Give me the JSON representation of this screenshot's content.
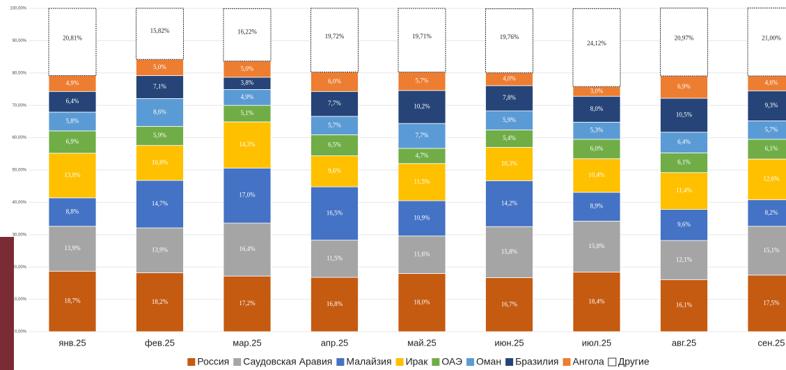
{
  "chart_data": {
    "type": "stacked_bar",
    "categories": [
      "янв.25",
      "фев.25",
      "мар.25",
      "апр.25",
      "май.25",
      "июн.25",
      "июл.25",
      "авг.25",
      "сен.25"
    ],
    "series": [
      {
        "name": "Россия",
        "color": "#c55a11",
        "values": [
          18.7,
          18.2,
          17.2,
          16.8,
          18.0,
          16.7,
          18.4,
          16.1,
          17.5
        ],
        "value_labels": [
          "18,7%",
          "18,2%",
          "17,2%",
          "16,8%",
          "18,0%",
          "16,7%",
          "18,4%",
          "16,1%",
          "17,5%"
        ]
      },
      {
        "name": "Саудовская Аравия",
        "color": "#a5a5a5",
        "values": [
          13.9,
          13.9,
          16.4,
          11.5,
          11.6,
          15.8,
          15.8,
          12.1,
          15.1
        ],
        "value_labels": [
          "13,9%",
          "13,9%",
          "16,4%",
          "11,5%",
          "11,6%",
          "15,8%",
          "15,8%",
          "12,1%",
          "15,1%"
        ]
      },
      {
        "name": "Малайзия",
        "color": "#4472c4",
        "values": [
          8.8,
          14.7,
          17.0,
          16.5,
          10.9,
          14.2,
          8.9,
          9.6,
          8.2
        ],
        "value_labels": [
          "8,8%",
          "14,7%",
          "17,0%",
          "16,5%",
          "10,9%",
          "14,2%",
          "8,9%",
          "9,6%",
          "8,2%"
        ]
      },
      {
        "name": "Ирак",
        "color": "#ffc000",
        "values": [
          13.8,
          10.8,
          14.3,
          9.6,
          11.5,
          10.3,
          10.4,
          11.4,
          12.6
        ],
        "value_labels": [
          "13,8%",
          "10,8%",
          "14,3%",
          "9,6%",
          "11,5%",
          "10,3%",
          "10,4%",
          "11,4%",
          "12,6%"
        ]
      },
      {
        "name": "ОАЭ",
        "color": "#70ad47",
        "values": [
          6.9,
          5.9,
          5.1,
          6.5,
          4.7,
          5.4,
          6.0,
          6.1,
          6.1
        ],
        "value_labels": [
          "6,9%",
          "5,9%",
          "5,1%",
          "6,5%",
          "4,7%",
          "5,4%",
          "6,0%",
          "6,1%",
          "6,1%"
        ]
      },
      {
        "name": "Оман",
        "color": "#5b9bd5",
        "values": [
          5.8,
          8.6,
          4.9,
          5.7,
          7.7,
          5.9,
          5.3,
          6.4,
          5.7
        ],
        "value_labels": [
          "5,8%",
          "8,6%",
          "4,9%",
          "5,7%",
          "7,7%",
          "5,9%",
          "5,3%",
          "6,4%",
          "5,7%"
        ]
      },
      {
        "name": "Бразилия",
        "color": "#264478",
        "values": [
          6.4,
          7.1,
          3.8,
          7.7,
          10.2,
          7.8,
          8.0,
          10.5,
          9.3
        ],
        "value_labels": [
          "6,4%",
          "7,1%",
          "3,8%",
          "7,7%",
          "10,2%",
          "7,8%",
          "8,0%",
          "10,5%",
          "9,3%"
        ]
      },
      {
        "name": "Ангола",
        "color": "#ed7d31",
        "values": [
          4.9,
          5.0,
          5.0,
          6.0,
          5.7,
          4.0,
          3.0,
          6.9,
          4.6
        ],
        "value_labels": [
          "4,9%",
          "5,0%",
          "5,0%",
          "6,0%",
          "5,7%",
          "4,0%",
          "3,0%",
          "6,9%",
          "4,6%"
        ]
      },
      {
        "name": "Другие",
        "color": "#ffffff",
        "values": [
          20.81,
          15.82,
          16.22,
          19.72,
          19.71,
          19.76,
          24.12,
          20.97,
          21.0
        ],
        "value_labels": [
          "20,81%",
          "15,82%",
          "16,22%",
          "19,72%",
          "19,71%",
          "19,76%",
          "24,12%",
          "20,97%",
          "21,00%"
        ]
      }
    ],
    "ylim": [
      0,
      100
    ],
    "yticks": [
      {
        "value": 0,
        "label": "0,00%"
      },
      {
        "value": 10,
        "label": "10,00%"
      },
      {
        "value": 20,
        "label": "20,00%"
      },
      {
        "value": 30,
        "label": "30,00%"
      },
      {
        "value": 40,
        "label": "40,00%"
      },
      {
        "value": 50,
        "label": "50,00%"
      },
      {
        "value": 60,
        "label": "60,00%"
      },
      {
        "value": 70,
        "label": "70,00%"
      },
      {
        "value": 80,
        "label": "80,00%"
      },
      {
        "value": 90,
        "label": "90,00%"
      },
      {
        "value": 100,
        "label": "100,00%"
      }
    ],
    "grid": true,
    "legend": "bottom"
  }
}
